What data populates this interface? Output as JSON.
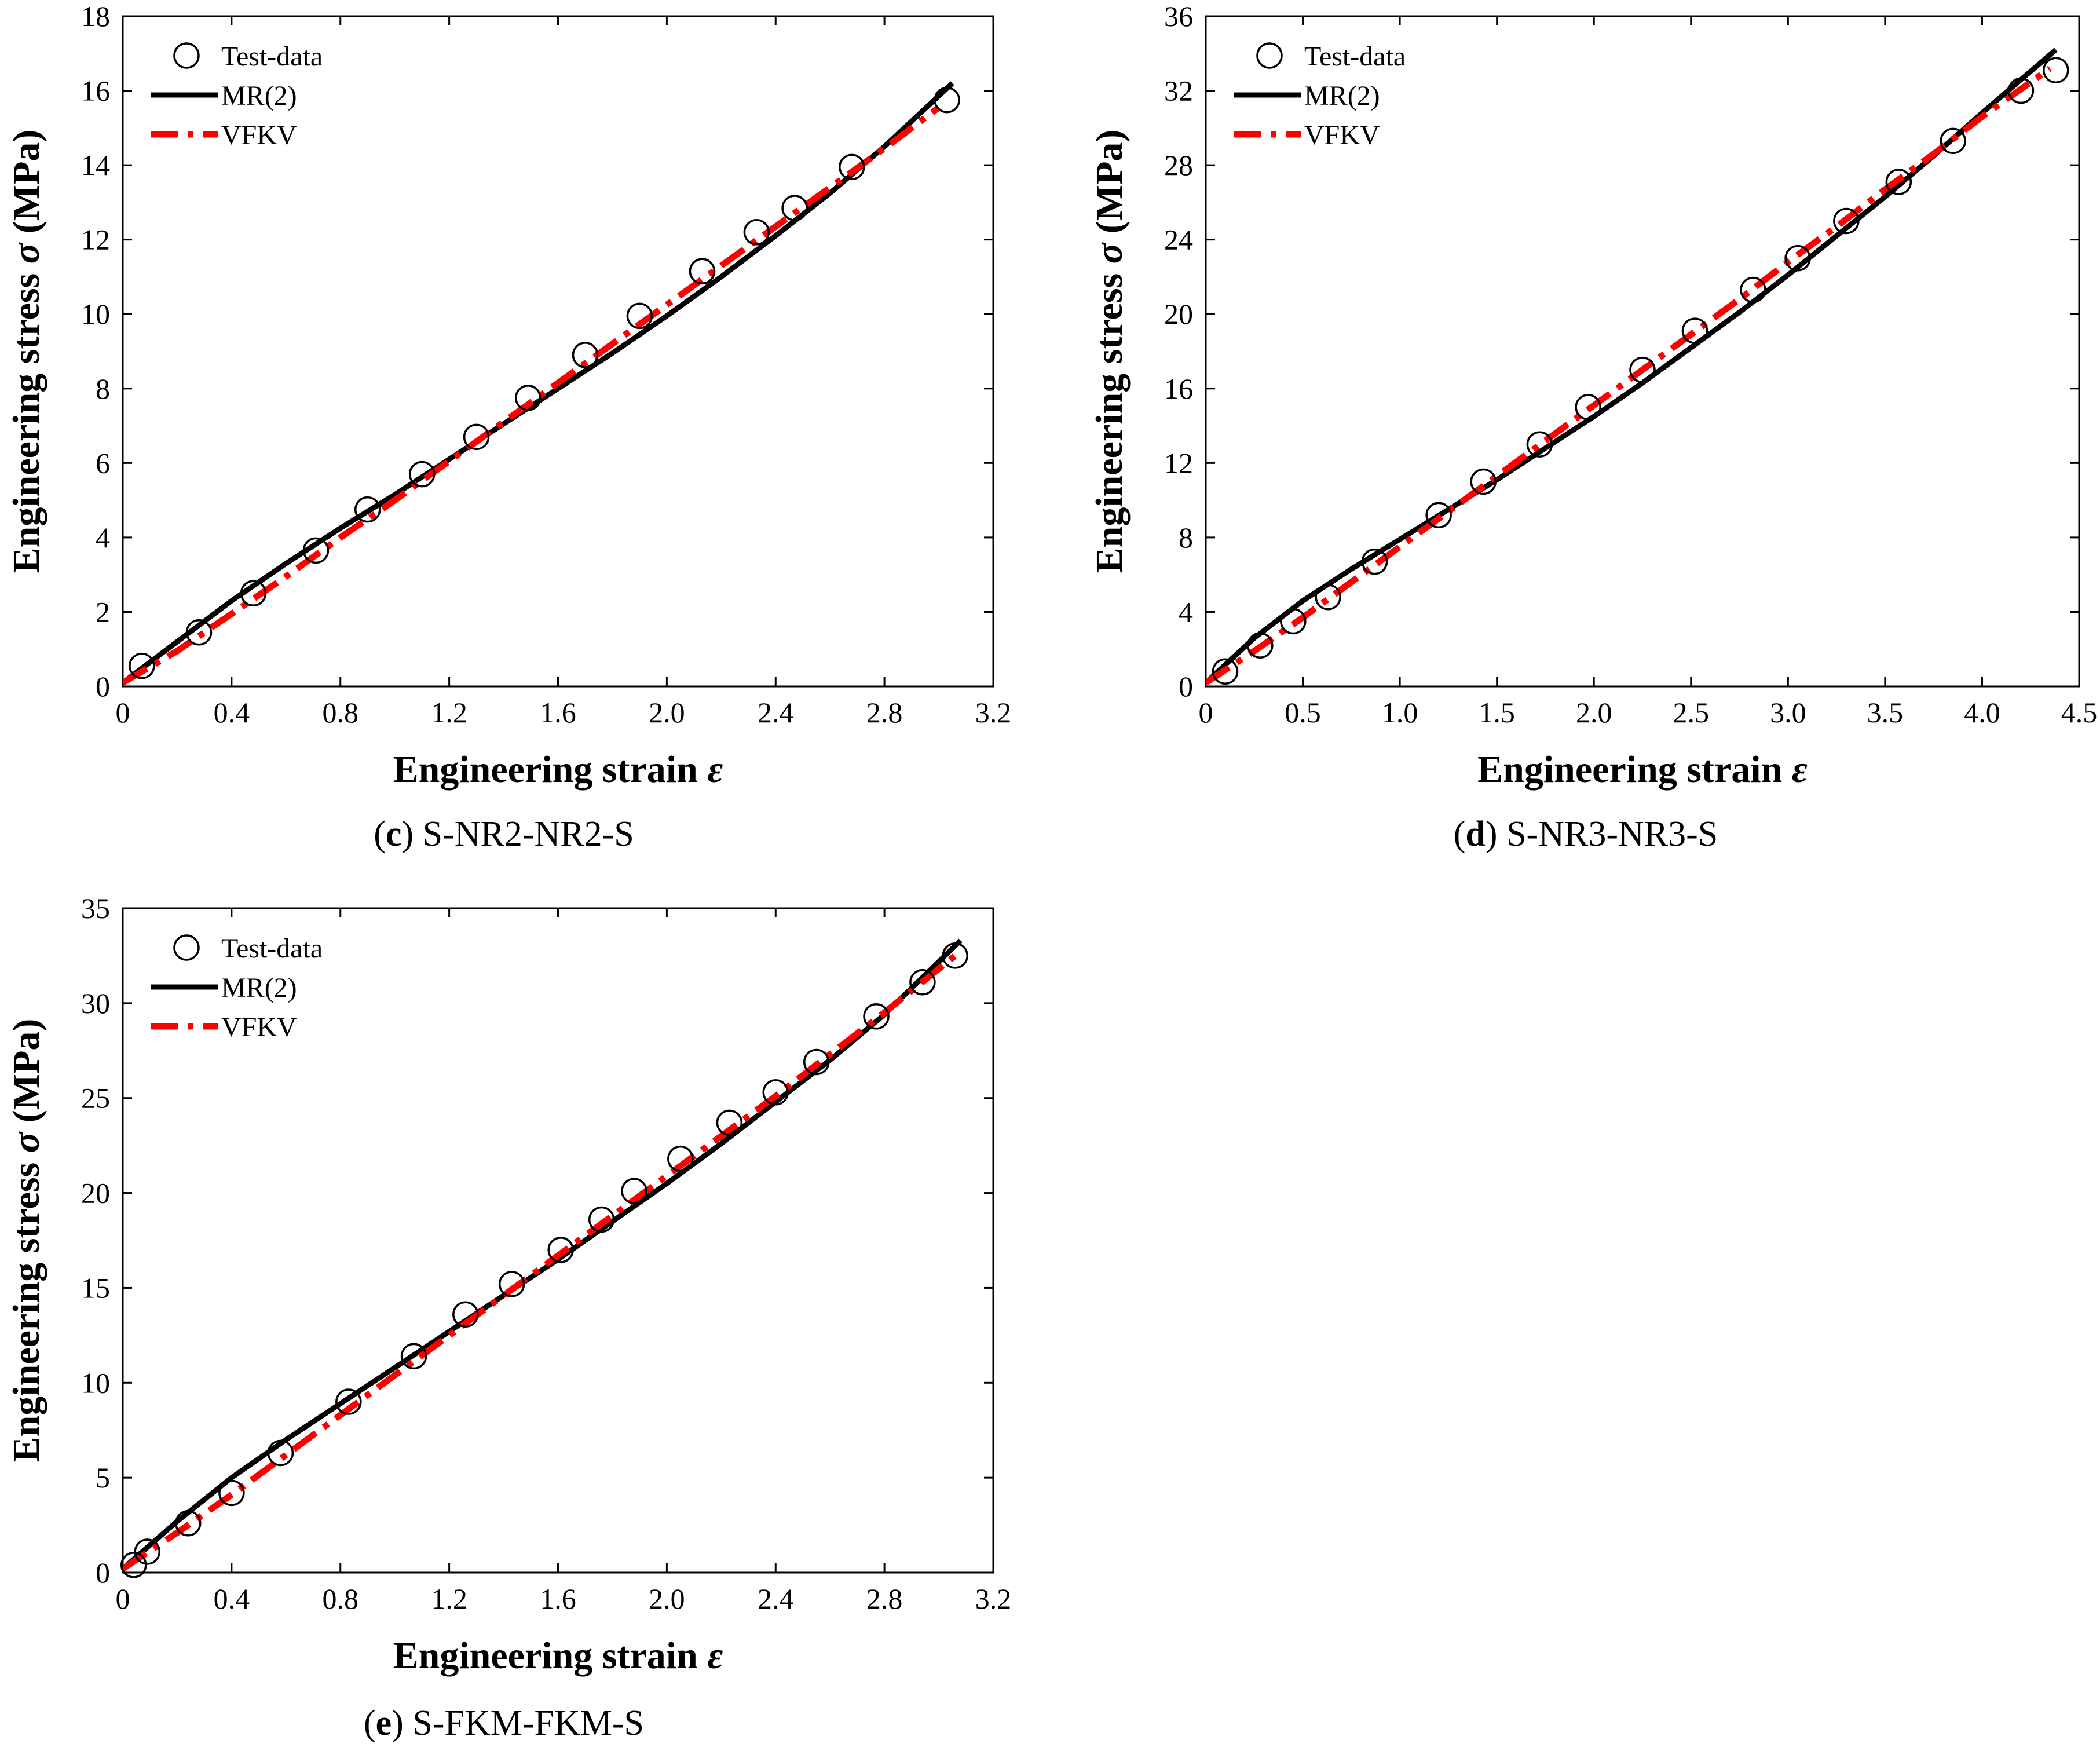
{
  "chart_data": [
    {
      "type": "line",
      "panel_letter": "c",
      "panel_name": " S-NR2-NR2-S",
      "xlabel": "Engineering strain",
      "xlabel_symbol": "ε",
      "ylabel": "Engineering stress",
      "ylabel_symbol": "σ",
      "ylabel_unit": "(MPa)",
      "xlim": [
        0,
        3.2
      ],
      "ylim": [
        0,
        18
      ],
      "xticks": [
        0,
        0.4,
        0.8,
        1.2,
        1.6,
        2.0,
        2.4,
        2.8,
        3.2
      ],
      "xtick_labels": [
        "0",
        "0.4",
        "0.8",
        "1.2",
        "1.6",
        "2.0",
        "2.4",
        "2.8",
        "3.2"
      ],
      "yticks": [
        0,
        2,
        4,
        6,
        8,
        10,
        12,
        14,
        16,
        18
      ],
      "ytick_labels": [
        "0",
        "2",
        "4",
        "6",
        "8",
        "10",
        "12",
        "14",
        "16",
        "18"
      ],
      "legend": [
        "Test-data",
        "MR(2)",
        "VFKV"
      ],
      "legend_position": "top-left",
      "test_data": {
        "x": [
          0.07,
          0.28,
          0.48,
          0.71,
          0.9,
          1.1,
          1.3,
          1.49,
          1.7,
          1.9,
          2.13,
          2.33,
          2.47,
          2.68,
          3.03
        ],
        "y": [
          0.55,
          1.45,
          2.5,
          3.65,
          4.75,
          5.7,
          6.7,
          7.75,
          8.9,
          9.95,
          11.15,
          12.2,
          12.85,
          13.95,
          15.75
        ]
      },
      "series": [
        {
          "name": "MR(2)",
          "x": [
            0,
            0.2,
            0.4,
            0.6,
            0.8,
            1.0,
            1.2,
            1.4,
            1.6,
            1.8,
            2.0,
            2.2,
            2.4,
            2.6,
            2.8,
            3.05
          ],
          "y": [
            0.1,
            1.2,
            2.3,
            3.3,
            4.25,
            5.15,
            6.1,
            7.05,
            8.0,
            8.95,
            9.95,
            11.0,
            12.1,
            13.25,
            14.5,
            16.2
          ]
        },
        {
          "name": "VFKV",
          "x": [
            0,
            0.2,
            0.4,
            0.6,
            0.8,
            1.0,
            1.2,
            1.4,
            1.6,
            1.8,
            2.0,
            2.2,
            2.4,
            2.6,
            2.8,
            3.0
          ],
          "y": [
            0.1,
            0.95,
            1.95,
            2.95,
            4.0,
            5.0,
            6.05,
            7.1,
            8.15,
            9.2,
            10.25,
            11.3,
            12.35,
            13.4,
            14.45,
            15.55
          ]
        }
      ],
      "colors": {
        "test": "#000000",
        "MR(2)": "#000000",
        "VFKV": "#ff0000"
      }
    },
    {
      "type": "line",
      "panel_letter": "d",
      "panel_name": " S-NR3-NR3-S",
      "xlabel": "Engineering strain",
      "xlabel_symbol": "ε",
      "ylabel": "Engineering stress",
      "ylabel_symbol": "σ",
      "ylabel_unit": "(MPa)",
      "xlim": [
        0,
        4.5
      ],
      "ylim": [
        0,
        36
      ],
      "xticks": [
        0,
        0.5,
        1.0,
        1.5,
        2.0,
        2.5,
        3.0,
        3.5,
        4.0,
        4.5
      ],
      "xtick_labels": [
        "0",
        "0.5",
        "1.0",
        "1.5",
        "2.0",
        "2.5",
        "3.0",
        "3.5",
        "4.0",
        "4.5"
      ],
      "yticks": [
        0,
        4,
        8,
        12,
        16,
        20,
        24,
        28,
        32,
        36
      ],
      "ytick_labels": [
        "0",
        "4",
        "8",
        "12",
        "16",
        "20",
        "24",
        "28",
        "32",
        "36"
      ],
      "legend": [
        "Test-data",
        "MR(2)",
        "VFKV"
      ],
      "legend_position": "top-left",
      "test_data": {
        "x": [
          0.1,
          0.28,
          0.45,
          0.63,
          0.87,
          1.2,
          1.43,
          1.72,
          1.97,
          2.25,
          2.52,
          2.82,
          3.05,
          3.3,
          3.57,
          3.85,
          4.2,
          4.38
        ],
        "y": [
          0.8,
          2.2,
          3.5,
          4.8,
          6.7,
          9.2,
          11.0,
          13.0,
          15.0,
          17.0,
          19.1,
          21.3,
          23.0,
          25.0,
          27.1,
          29.3,
          32.0,
          33.1
        ]
      },
      "series": [
        {
          "name": "MR(2)",
          "x": [
            0,
            0.25,
            0.5,
            0.75,
            1.0,
            1.25,
            1.5,
            1.75,
            2.0,
            2.25,
            2.5,
            2.75,
            3.0,
            3.25,
            3.5,
            3.75,
            4.0,
            4.38
          ],
          "y": [
            0.2,
            2.6,
            4.6,
            6.3,
            7.9,
            9.5,
            11.1,
            12.8,
            14.5,
            16.3,
            18.2,
            20.1,
            22.1,
            24.2,
            26.3,
            28.5,
            30.8,
            34.2
          ]
        },
        {
          "name": "VFKV",
          "x": [
            0,
            0.25,
            0.5,
            0.75,
            1.0,
            1.25,
            1.5,
            1.75,
            2.0,
            2.25,
            2.5,
            2.75,
            3.0,
            3.25,
            3.5,
            3.75,
            4.0,
            4.35
          ],
          "y": [
            0.2,
            1.9,
            3.7,
            5.6,
            7.5,
            9.4,
            11.3,
            13.2,
            15.1,
            17.0,
            18.9,
            20.8,
            22.8,
            24.7,
            26.7,
            28.6,
            30.6,
            33.2
          ]
        }
      ],
      "colors": {
        "test": "#000000",
        "MR(2)": "#000000",
        "VFKV": "#ff0000"
      }
    },
    {
      "type": "line",
      "panel_letter": "e",
      "panel_name": " S-FKM-FKM-S",
      "xlabel": "Engineering strain",
      "xlabel_symbol": "ε",
      "ylabel": "Engineering stress",
      "ylabel_symbol": "σ",
      "ylabel_unit": "(MPa)",
      "xlim": [
        0,
        3.2
      ],
      "ylim": [
        0,
        35
      ],
      "xticks": [
        0,
        0.4,
        0.8,
        1.2,
        1.6,
        2.0,
        2.4,
        2.8,
        3.2
      ],
      "xtick_labels": [
        "0",
        "0.4",
        "0.8",
        "1.2",
        "1.6",
        "2.0",
        "2.4",
        "2.8",
        "3.2"
      ],
      "yticks": [
        0,
        5,
        10,
        15,
        20,
        25,
        30,
        35
      ],
      "ytick_labels": [
        "0",
        "5",
        "10",
        "15",
        "20",
        "25",
        "30",
        "35"
      ],
      "legend": [
        "Test-data",
        "MR(2)",
        "VFKV"
      ],
      "legend_position": "top-left",
      "test_data": {
        "x": [
          0.04,
          0.09,
          0.24,
          0.4,
          0.58,
          0.83,
          1.07,
          1.26,
          1.43,
          1.61,
          1.76,
          1.88,
          2.05,
          2.23,
          2.4,
          2.55,
          2.77,
          2.94,
          3.06
        ],
        "y": [
          0.4,
          1.1,
          2.6,
          4.2,
          6.3,
          9.0,
          11.4,
          13.6,
          15.2,
          17.0,
          18.6,
          20.1,
          21.8,
          23.7,
          25.3,
          26.9,
          29.3,
          31.1,
          32.5
        ]
      },
      "series": [
        {
          "name": "MR(2)",
          "x": [
            0,
            0.2,
            0.4,
            0.6,
            0.8,
            1.0,
            1.2,
            1.4,
            1.6,
            1.8,
            2.0,
            2.2,
            2.4,
            2.6,
            2.8,
            3.08
          ],
          "y": [
            0.2,
            2.7,
            5.0,
            7.0,
            8.9,
            10.8,
            12.7,
            14.6,
            16.5,
            18.5,
            20.5,
            22.6,
            24.8,
            27.0,
            29.4,
            33.3
          ]
        },
        {
          "name": "VFKV",
          "x": [
            0,
            0.2,
            0.4,
            0.6,
            0.8,
            1.0,
            1.2,
            1.4,
            1.6,
            1.8,
            2.0,
            2.2,
            2.4,
            2.6,
            2.8,
            3.06
          ],
          "y": [
            0.2,
            2.1,
            4.1,
            6.2,
            8.3,
            10.4,
            12.5,
            14.6,
            16.7,
            18.8,
            20.9,
            23.0,
            25.1,
            27.3,
            29.5,
            32.5
          ]
        }
      ],
      "colors": {
        "test": "#000000",
        "MR(2)": "#000000",
        "VFKV": "#ff0000"
      }
    }
  ]
}
